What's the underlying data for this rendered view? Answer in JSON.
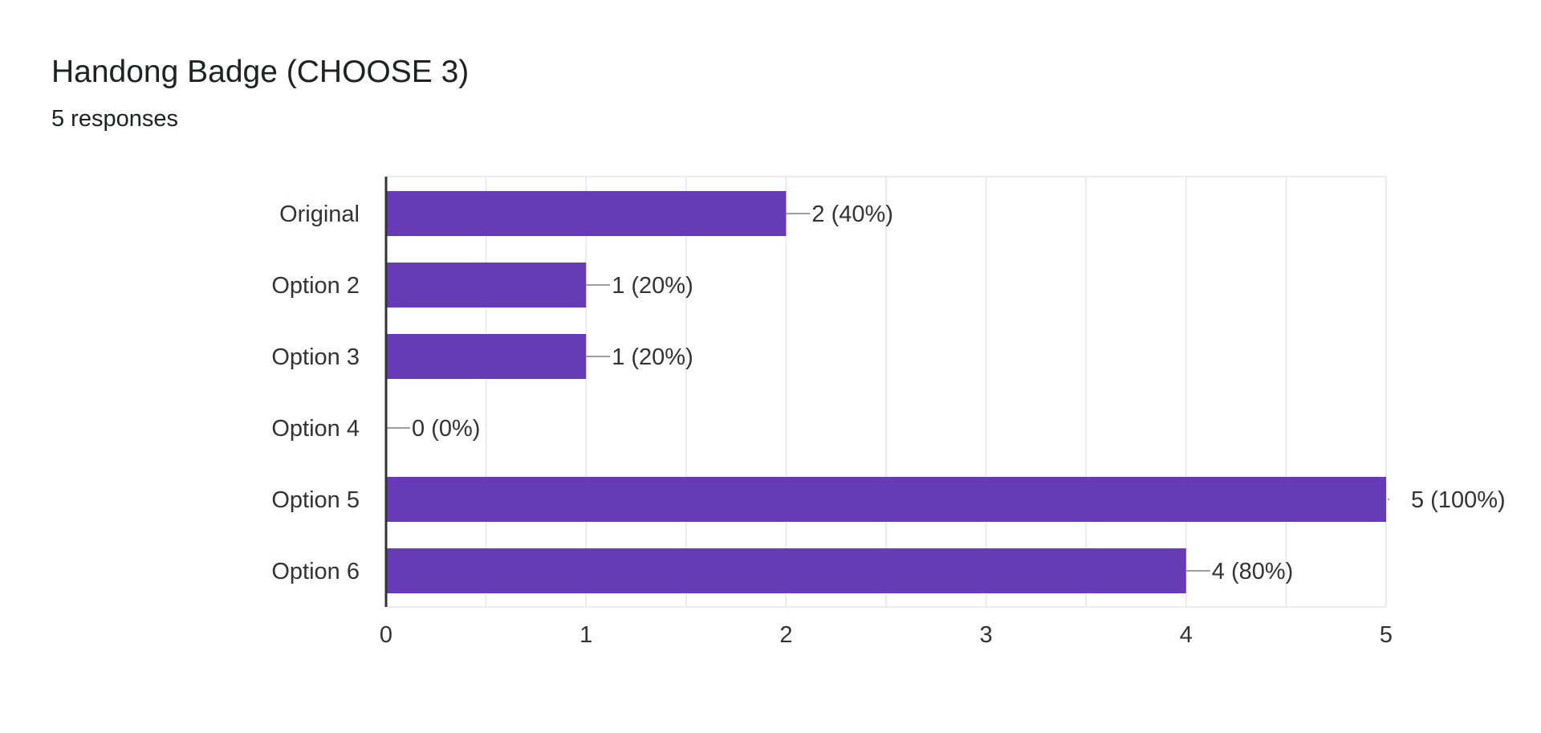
{
  "title": "Handong Badge (CHOOSE 3)",
  "subtitle": "5 responses",
  "colors": {
    "bar": "#673ab7",
    "grid": "#ebebeb",
    "axis": "#333333",
    "leader": "#9e9e9e",
    "text": "#333333"
  },
  "chart_data": {
    "type": "bar",
    "orientation": "horizontal",
    "title": "Handong Badge (CHOOSE 3)",
    "subtitle": "5 responses",
    "categories": [
      "Original",
      "Option 2",
      "Option 3",
      "Option 4",
      "Option 5",
      "Option 6"
    ],
    "values": [
      2,
      1,
      1,
      0,
      5,
      4
    ],
    "data_labels": [
      "2 (40%)",
      "1 (20%)",
      "1 (20%)",
      "0 (0%)",
      "5 (100%)",
      "4 (80%)"
    ],
    "xlim": [
      0,
      5
    ],
    "xticks": [
      "0",
      "1",
      "2",
      "3",
      "4",
      "5"
    ],
    "xlabel": "",
    "ylabel": "",
    "grid": true,
    "legend": "none"
  }
}
